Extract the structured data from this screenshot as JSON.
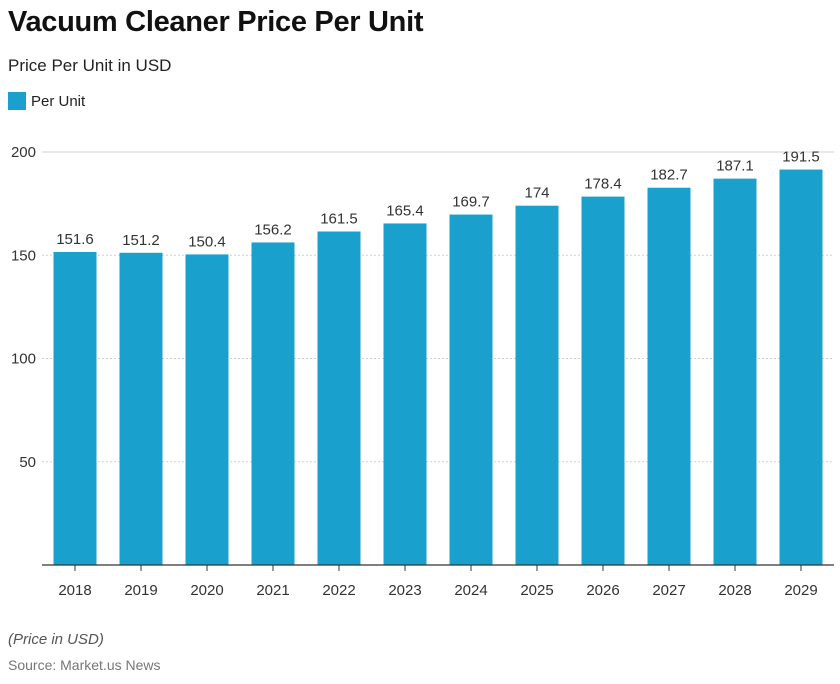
{
  "title": "Vacuum Cleaner Price Per Unit",
  "subtitle": "Price Per Unit in USD",
  "legend": {
    "label": "Per Unit",
    "color": "#1aa0cd"
  },
  "footnote": "(Price in USD)",
  "source": "Source: Market.us News",
  "chart_data": {
    "type": "bar",
    "categories": [
      "2018",
      "2019",
      "2020",
      "2021",
      "2022",
      "2023",
      "2024",
      "2025",
      "2026",
      "2027",
      "2028",
      "2029"
    ],
    "series": [
      {
        "name": "Per Unit",
        "values": [
          151.6,
          151.2,
          150.4,
          156.2,
          161.5,
          165.4,
          169.7,
          174,
          178.4,
          182.7,
          187.1,
          191.5
        ]
      }
    ],
    "data_labels": [
      "151.6",
      "151.2",
      "150.4",
      "156.2",
      "161.5",
      "165.4",
      "169.7",
      "174",
      "178.4",
      "182.7",
      "187.1",
      "191.5"
    ],
    "ylim": [
      0,
      200
    ],
    "yticks": [
      50,
      100,
      150,
      200
    ],
    "grid": true,
    "legend_position": "top-left"
  }
}
